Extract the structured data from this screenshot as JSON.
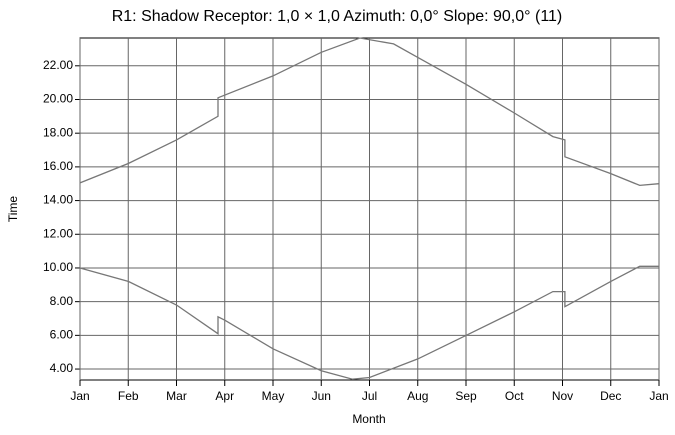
{
  "chart_data": {
    "type": "line",
    "title": "R1: Shadow  Receptor: 1,0 × 1,0  Azimuth: 0,0°  Slope: 90,0° (11)",
    "x_label": "Month",
    "y_label": "Time",
    "xlim": [
      0,
      12
    ],
    "xticks": [
      {
        "value": 0,
        "label": "Jan"
      },
      {
        "value": 1,
        "label": "Feb"
      },
      {
        "value": 2,
        "label": "Mar"
      },
      {
        "value": 3,
        "label": "Apr"
      },
      {
        "value": 4,
        "label": "May"
      },
      {
        "value": 5,
        "label": "Jun"
      },
      {
        "value": 6,
        "label": "Jul"
      },
      {
        "value": 7,
        "label": "Aug"
      },
      {
        "value": 8,
        "label": "Sep"
      },
      {
        "value": 9,
        "label": "Oct"
      },
      {
        "value": 10,
        "label": "Nov"
      },
      {
        "value": 11,
        "label": "Dec"
      },
      {
        "value": 12,
        "label": "Jan"
      }
    ],
    "ylim": [
      3.35,
      23.65
    ],
    "yticks": [
      {
        "value": 4,
        "label": "4.00"
      },
      {
        "value": 6,
        "label": "6.00"
      },
      {
        "value": 8,
        "label": "8.00"
      },
      {
        "value": 10,
        "label": "10.00"
      },
      {
        "value": 12,
        "label": "12.00"
      },
      {
        "value": 14,
        "label": "14.00"
      },
      {
        "value": 16,
        "label": "16.00"
      },
      {
        "value": 18,
        "label": "18.00"
      },
      {
        "value": 20,
        "label": "20.00"
      },
      {
        "value": 22,
        "label": "22.00"
      }
    ],
    "grid": true,
    "series": [
      {
        "color": "#777777",
        "x": [
          0,
          1,
          2,
          2.86,
          2.86,
          4,
          5,
          5.8,
          6.5,
          7,
          8,
          9,
          9.8,
          10.05,
          10.05,
          11,
          11.6,
          12
        ],
        "values": [
          15.05,
          16.2,
          17.6,
          19.0,
          20.1,
          21.4,
          22.8,
          23.65,
          23.3,
          22.5,
          20.9,
          19.2,
          17.8,
          17.6,
          16.6,
          15.6,
          14.9,
          15.0
        ]
      },
      {
        "color": "#777777",
        "x": [
          0,
          1,
          2,
          2.86,
          2.86,
          3,
          4,
          5,
          5.65,
          6,
          7,
          8,
          9,
          9.8,
          10.05,
          10.05,
          11,
          11.6,
          12
        ],
        "values": [
          10.0,
          9.2,
          7.8,
          6.1,
          7.1,
          6.9,
          5.2,
          3.9,
          3.4,
          3.5,
          4.6,
          6.0,
          7.4,
          8.6,
          8.6,
          7.7,
          9.2,
          10.1,
          10.1
        ]
      }
    ]
  }
}
